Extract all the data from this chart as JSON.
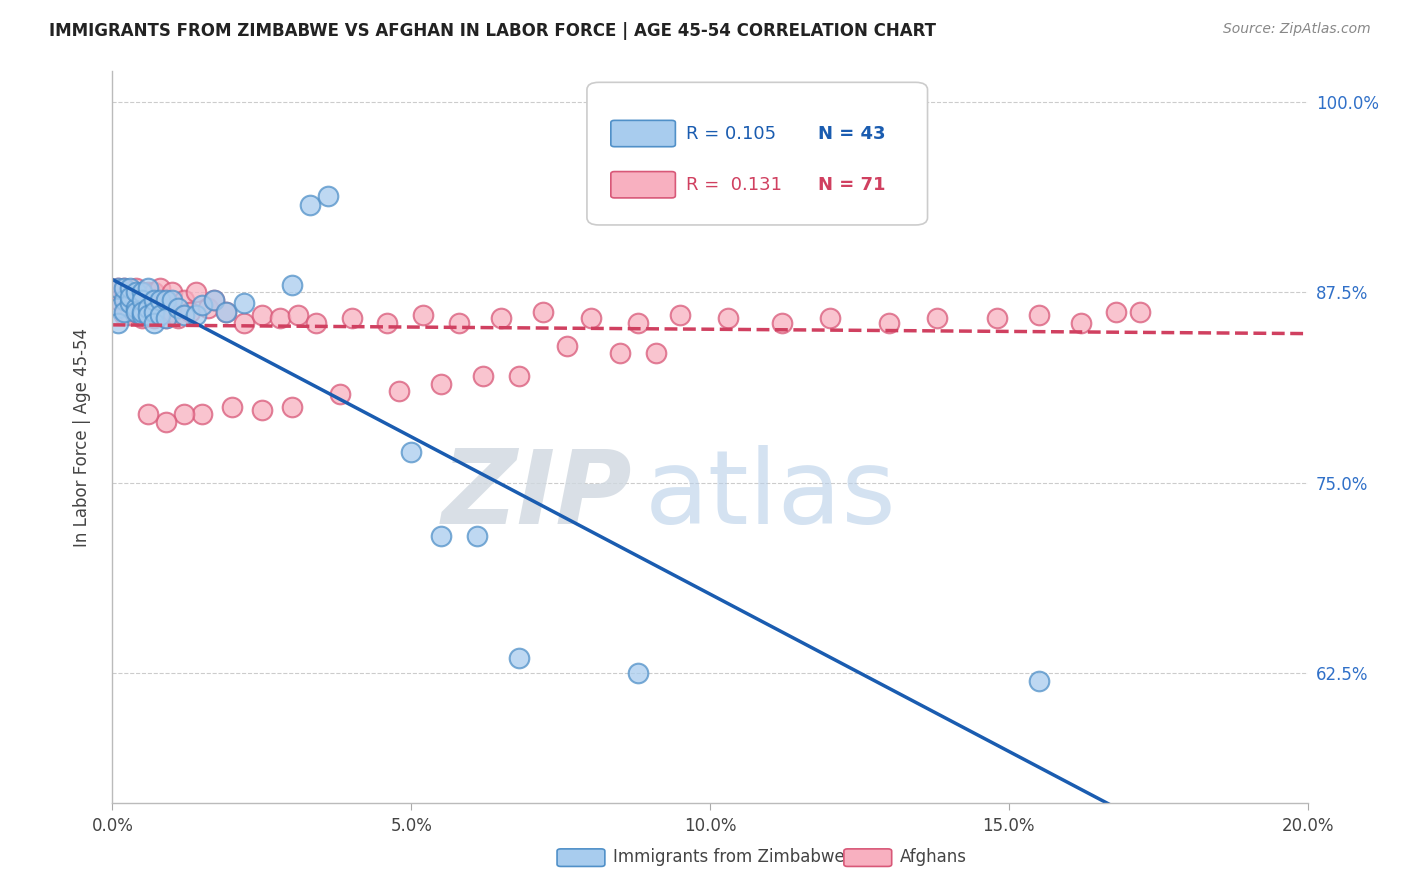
{
  "title": "IMMIGRANTS FROM ZIMBABWE VS AFGHAN IN LABOR FORCE | AGE 45-54 CORRELATION CHART",
  "source": "Source: ZipAtlas.com",
  "ylabel": "In Labor Force | Age 45-54",
  "xlim": [
    0.0,
    0.2
  ],
  "ylim": [
    0.54,
    1.02
  ],
  "xtick_labels": [
    "0.0%",
    "5.0%",
    "10.0%",
    "15.0%",
    "20.0%"
  ],
  "xtick_values": [
    0.0,
    0.05,
    0.1,
    0.15,
    0.2
  ],
  "ytick_labels": [
    "62.5%",
    "75.0%",
    "87.5%",
    "100.0%"
  ],
  "ytick_values": [
    0.625,
    0.75,
    0.875,
    1.0
  ],
  "legend_r1": "R = 0.105",
  "legend_n1": "N = 43",
  "legend_r2": "R =  0.131",
  "legend_n2": "N = 71",
  "legend_label1": "Immigrants from Zimbabwe",
  "legend_label2": "Afghans",
  "zim_color_face": "#a8ccee",
  "zim_color_edge": "#5090c8",
  "afg_color_face": "#f8b0c0",
  "afg_color_edge": "#d85878",
  "zim_line_color": "#1a5cb0",
  "afg_line_color": "#d04060",
  "grid_color": "#cccccc",
  "title_color": "#222222",
  "right_axis_color": "#3070c8",
  "zim_x": [
    0.001,
    0.001,
    0.001,
    0.002,
    0.002,
    0.002,
    0.003,
    0.003,
    0.003,
    0.004,
    0.004,
    0.004,
    0.005,
    0.005,
    0.005,
    0.005,
    0.006,
    0.006,
    0.006,
    0.007,
    0.007,
    0.007,
    0.008,
    0.008,
    0.009,
    0.009,
    0.01,
    0.011,
    0.012,
    0.014,
    0.015,
    0.017,
    0.019,
    0.022,
    0.03,
    0.033,
    0.036,
    0.05,
    0.055,
    0.061,
    0.068,
    0.088,
    0.155
  ],
  "zim_y": [
    0.865,
    0.878,
    0.855,
    0.87,
    0.862,
    0.878,
    0.868,
    0.878,
    0.872,
    0.865,
    0.875,
    0.862,
    0.86,
    0.875,
    0.87,
    0.862,
    0.865,
    0.878,
    0.86,
    0.87,
    0.862,
    0.855,
    0.87,
    0.86,
    0.87,
    0.858,
    0.87,
    0.865,
    0.86,
    0.86,
    0.867,
    0.87,
    0.862,
    0.868,
    0.88,
    0.932,
    0.938,
    0.77,
    0.715,
    0.715,
    0.635,
    0.625,
    0.62
  ],
  "afg_x": [
    0.001,
    0.001,
    0.002,
    0.002,
    0.002,
    0.003,
    0.003,
    0.003,
    0.004,
    0.004,
    0.004,
    0.005,
    0.005,
    0.005,
    0.006,
    0.006,
    0.006,
    0.007,
    0.007,
    0.008,
    0.008,
    0.009,
    0.009,
    0.01,
    0.01,
    0.011,
    0.012,
    0.013,
    0.014,
    0.016,
    0.017,
    0.019,
    0.022,
    0.025,
    0.028,
    0.031,
    0.034,
    0.04,
    0.046,
    0.052,
    0.058,
    0.065,
    0.072,
    0.08,
    0.088,
    0.095,
    0.103,
    0.112,
    0.12,
    0.13,
    0.138,
    0.148,
    0.155,
    0.162,
    0.168,
    0.172,
    0.076,
    0.085,
    0.091,
    0.062,
    0.068,
    0.055,
    0.048,
    0.038,
    0.03,
    0.025,
    0.02,
    0.015,
    0.012,
    0.009,
    0.006
  ],
  "afg_y": [
    0.878,
    0.87,
    0.872,
    0.86,
    0.878,
    0.868,
    0.875,
    0.86,
    0.87,
    0.862,
    0.878,
    0.865,
    0.875,
    0.858,
    0.87,
    0.862,
    0.875,
    0.858,
    0.875,
    0.862,
    0.878,
    0.858,
    0.87,
    0.862,
    0.875,
    0.858,
    0.87,
    0.862,
    0.875,
    0.865,
    0.87,
    0.862,
    0.855,
    0.86,
    0.858,
    0.86,
    0.855,
    0.858,
    0.855,
    0.86,
    0.855,
    0.858,
    0.862,
    0.858,
    0.855,
    0.86,
    0.858,
    0.855,
    0.858,
    0.855,
    0.858,
    0.858,
    0.86,
    0.855,
    0.862,
    0.862,
    0.84,
    0.835,
    0.835,
    0.82,
    0.82,
    0.815,
    0.81,
    0.808,
    0.8,
    0.798,
    0.8,
    0.795,
    0.795,
    0.79,
    0.795
  ]
}
